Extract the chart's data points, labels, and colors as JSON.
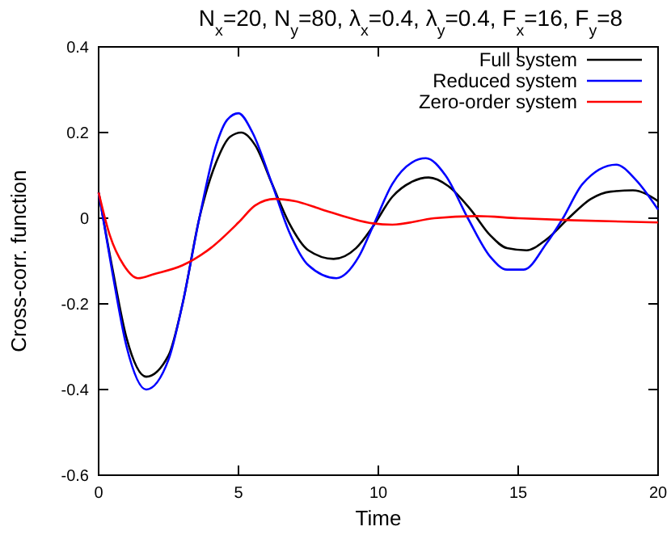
{
  "chart_data": {
    "type": "line",
    "title": "N$_{x}$=20, N$_{y}$=80, λ$_{x}$=0.4, λ$_{y}$=0.4, F$_{x}$=16, F$_{y}$=8",
    "xlabel": "Time",
    "ylabel": "Cross-corr. function",
    "xlim": [
      0,
      20
    ],
    "ylim": [
      -0.6,
      0.4
    ],
    "xticks": [
      0,
      5,
      10,
      15,
      20
    ],
    "yticks": [
      -0.6,
      -0.4,
      -0.2,
      0,
      0.2,
      0.4
    ],
    "legend": "top right",
    "grid": false,
    "marker": "none",
    "line_style": "solid",
    "series": [
      {
        "name": "Full system",
        "color": "#000000",
        "x": [
          0,
          0.5,
          1,
          1.7,
          2.5,
          3,
          3.6,
          4.2,
          4.7,
          5.1,
          5.6,
          6.2,
          6.8,
          7.5,
          8.4,
          9.2,
          9.8,
          10.5,
          11.2,
          11.8,
          12.5,
          13.3,
          14,
          14.6,
          15.3,
          16,
          16.8,
          17.6,
          18.3,
          19.1,
          20
        ],
        "values": [
          0.06,
          -0.12,
          -0.28,
          -0.37,
          -0.32,
          -0.2,
          0,
          0.13,
          0.19,
          0.2,
          0.17,
          0.08,
          -0.01,
          -0.075,
          -0.095,
          -0.07,
          -0.02,
          0.05,
          0.085,
          0.095,
          0.075,
          0.02,
          -0.04,
          -0.07,
          -0.075,
          -0.05,
          0,
          0.045,
          0.062,
          0.065,
          0.04
        ]
      },
      {
        "name": "Reduced system",
        "color": "#0000ff",
        "x": [
          0,
          0.5,
          1,
          1.7,
          2.5,
          3,
          3.6,
          4.2,
          4.6,
          5,
          5.5,
          6.2,
          6.8,
          7.5,
          8.5,
          9.3,
          9.8,
          10.5,
          11.2,
          11.7,
          12.4,
          13.2,
          14,
          14.6,
          15.2,
          16,
          16.6,
          17.3,
          18.5,
          19.2,
          20
        ],
        "values": [
          0.06,
          -0.13,
          -0.3,
          -0.4,
          -0.33,
          -0.2,
          0,
          0.17,
          0.23,
          0.245,
          0.2,
          0.08,
          -0.03,
          -0.11,
          -0.14,
          -0.09,
          -0.02,
          0.08,
          0.13,
          0.14,
          0.1,
          0,
          -0.09,
          -0.12,
          -0.12,
          -0.06,
          0,
          0.08,
          0.125,
          0.09,
          0.02
        ]
      },
      {
        "name": "Zero-order system",
        "color": "#ff0000",
        "x": [
          0,
          0.4,
          0.9,
          1.4,
          2,
          3,
          4,
          5,
          5.6,
          6.3,
          7,
          8,
          9,
          9.8,
          10.5,
          12,
          13.5,
          15,
          17,
          20
        ],
        "values": [
          0.06,
          -0.04,
          -0.11,
          -0.14,
          -0.13,
          -0.11,
          -0.07,
          -0.01,
          0.03,
          0.045,
          0.04,
          0.02,
          0,
          -0.012,
          -0.015,
          0,
          0.005,
          0,
          -0.005,
          -0.01
        ]
      }
    ]
  }
}
